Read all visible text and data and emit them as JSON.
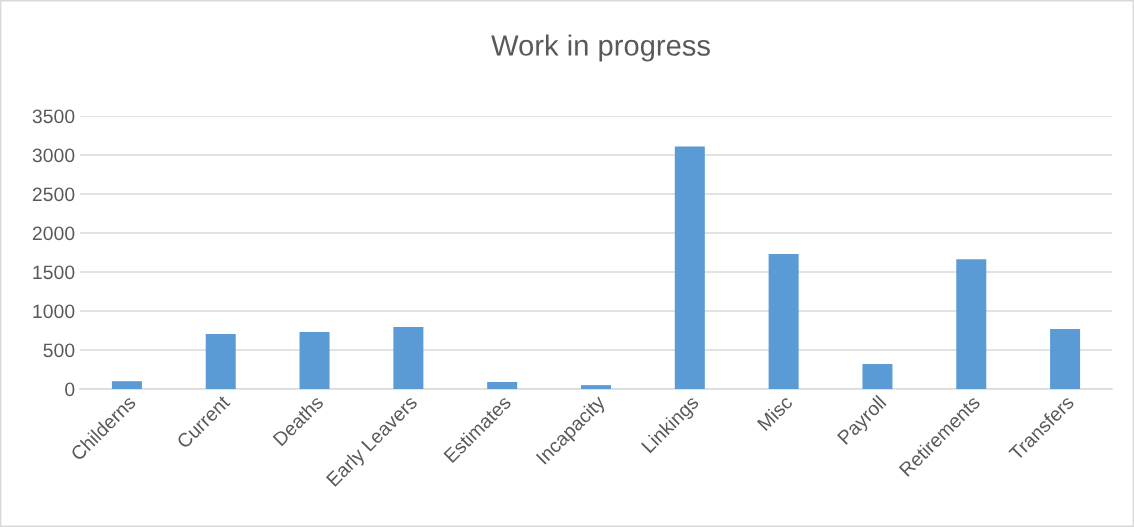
{
  "chart_data": {
    "type": "bar",
    "title": "Work in progress",
    "categories": [
      "Childerns",
      "Current",
      "Deaths",
      "Early Leavers",
      "Estimates",
      "Incapacity",
      "Linkings",
      "Misc",
      "Payroll",
      "Retirements",
      "Transfers"
    ],
    "values": [
      100,
      705,
      730,
      795,
      90,
      50,
      3110,
      1730,
      320,
      1665,
      770
    ],
    "color": "#5b9bd5",
    "ylim": [
      0,
      3500
    ],
    "yticks": [
      0,
      500,
      1000,
      1500,
      2000,
      2500,
      3000,
      3500
    ],
    "grid": "y",
    "legend": false
  }
}
